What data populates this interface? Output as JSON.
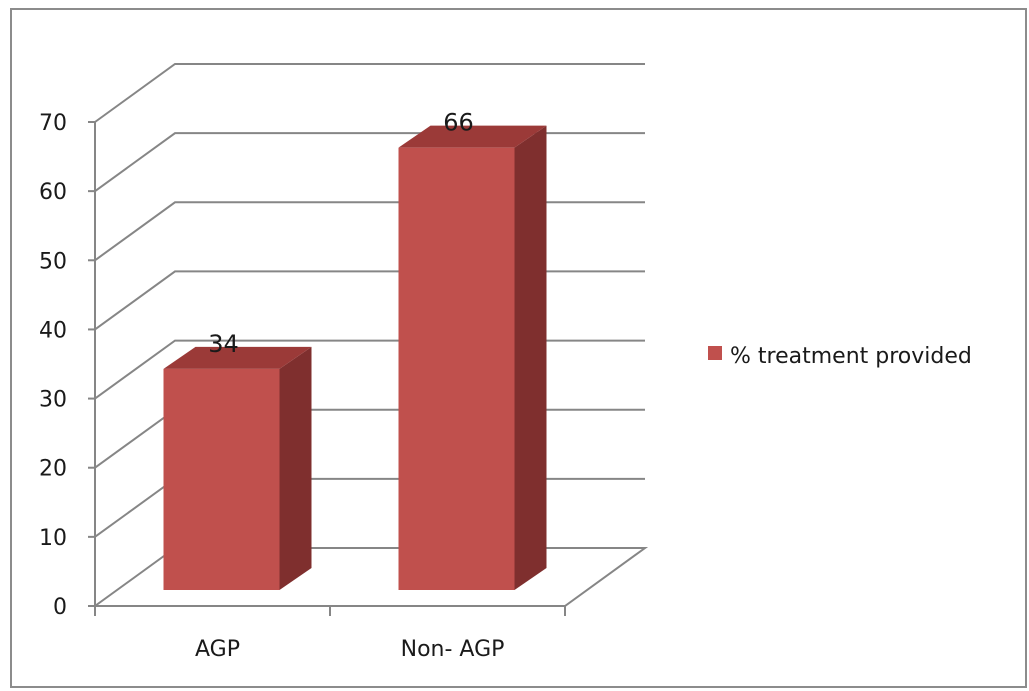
{
  "chart_data": {
    "type": "bar",
    "categories": [
      "AGP",
      "Non- AGP"
    ],
    "series": [
      {
        "name": "% treatment provided",
        "values": [
          34,
          66
        ]
      }
    ],
    "ylim": [
      0,
      70
    ],
    "yticks": [
      0,
      10,
      20,
      30,
      40,
      50,
      60,
      70
    ],
    "grid": true,
    "legend_position": "right",
    "style": "3d-column"
  },
  "colors": {
    "bar_front": "#c0504d",
    "bar_side": "#7f2f2e",
    "bar_top": "#9b3a38",
    "grid": "#868686",
    "axis": "#868686"
  }
}
